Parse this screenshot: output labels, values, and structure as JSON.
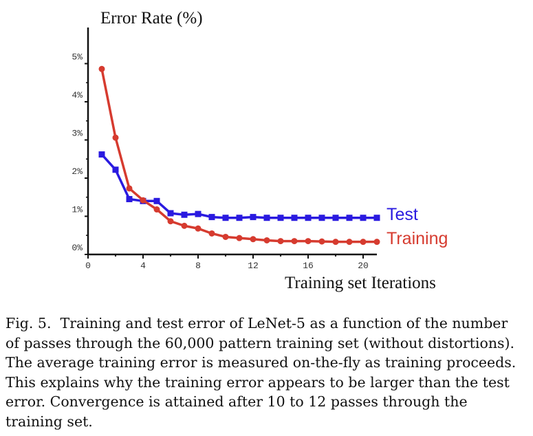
{
  "chart_data": {
    "type": "line",
    "title": "",
    "ylabel": "Error Rate (%)",
    "xlabel": "Training set Iterations",
    "xlim": [
      0,
      21
    ],
    "ylim": [
      0,
      5.6
    ],
    "xticks": [
      0,
      4,
      8,
      12,
      16,
      20
    ],
    "xtick_labels": [
      "0",
      "4",
      "8",
      "12",
      "16",
      "20"
    ],
    "yticks": [
      0,
      1,
      2,
      3,
      4,
      5
    ],
    "ytick_labels": [
      "0%",
      "1%",
      "2%",
      "3%",
      "4%",
      "5%"
    ],
    "legend_placement": "right",
    "series": [
      {
        "name": "Test",
        "color": "#2a1ae0",
        "marker": "square",
        "x": [
          1,
          2,
          3,
          4,
          5,
          6,
          7,
          8,
          9,
          10,
          11,
          12,
          13,
          14,
          15,
          16,
          17,
          18,
          19,
          20,
          21
        ],
        "values": [
          2.62,
          2.22,
          1.45,
          1.4,
          1.4,
          1.08,
          1.04,
          1.06,
          0.98,
          0.96,
          0.96,
          0.98,
          0.96,
          0.96,
          0.96,
          0.96,
          0.96,
          0.96,
          0.96,
          0.96,
          0.96
        ]
      },
      {
        "name": "Training",
        "color": "#d63b2f",
        "marker": "circle",
        "x": [
          1,
          2,
          3,
          4,
          5,
          6,
          7,
          8,
          9,
          10,
          11,
          12,
          13,
          14,
          15,
          16,
          17,
          18,
          19,
          20,
          21
        ],
        "values": [
          4.86,
          3.06,
          1.73,
          1.42,
          1.18,
          0.87,
          0.75,
          0.68,
          0.55,
          0.46,
          0.43,
          0.4,
          0.37,
          0.35,
          0.35,
          0.35,
          0.34,
          0.33,
          0.33,
          0.33,
          0.33
        ]
      }
    ]
  },
  "caption": {
    "label": "Fig. 5.",
    "text": "Training and test error of LeNet-5 as a function of the number of passes through the 60,000 pattern training set (without distortions). The average training error is measured on-the-fly as training proceeds. This explains why the training error appears to be larger than the test error. Convergence is attained after 10 to 12 passes through the training set."
  }
}
